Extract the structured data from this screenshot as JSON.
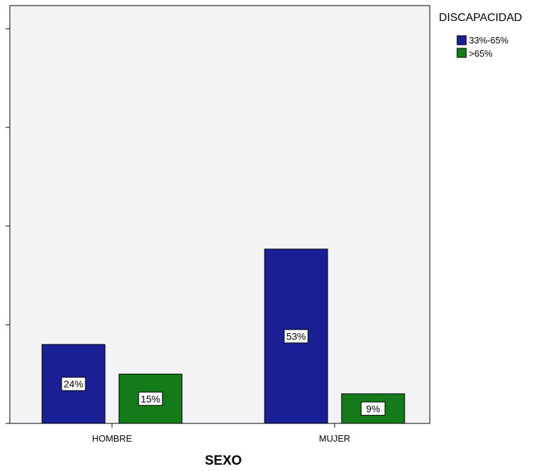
{
  "chart_data": {
    "type": "bar",
    "title": "",
    "xlabel": "SEXO",
    "ylabel": "",
    "categories": [
      "HOMBRE",
      "MUJER"
    ],
    "legend_title": "DISCAPACIDAD",
    "legend_position": "right",
    "ylim": [
      0,
      60
    ],
    "grid": false,
    "series": [
      {
        "name": "33%-65%",
        "color": "#1a1f96",
        "values": [
          24,
          53
        ],
        "labels": [
          "24%",
          "53%"
        ]
      },
      {
        "name": ">65%",
        "color": "#157a1a",
        "values": [
          15,
          9
        ],
        "labels": [
          "15%",
          "9%"
        ]
      }
    ],
    "plot_background": "#f3f3f6"
  }
}
